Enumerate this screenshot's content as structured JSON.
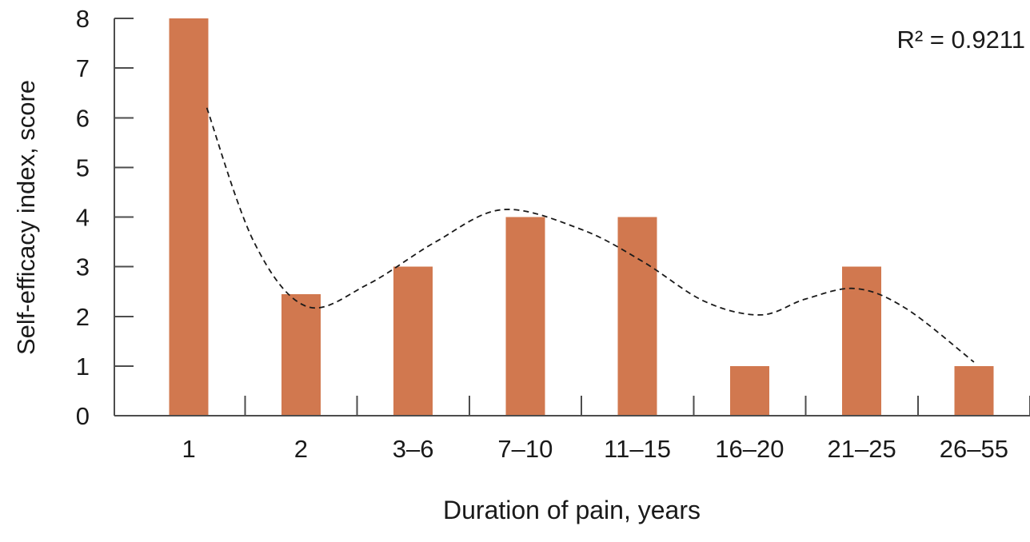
{
  "chart_data": {
    "type": "bar",
    "title": "",
    "xlabel": "Duration of pain, years",
    "ylabel": "Self-efficacy index, score",
    "categories": [
      "1",
      "2",
      "3–6",
      "7–10",
      "11–15",
      "16–20",
      "21–25",
      "26–55"
    ],
    "values": [
      8,
      2.45,
      3,
      4,
      4,
      1,
      3,
      1
    ],
    "ylim": [
      0,
      8
    ],
    "y_ticks": [
      0,
      1,
      2,
      3,
      4,
      5,
      6,
      7,
      8
    ],
    "grid": false,
    "legend_position": "none",
    "annotation": "R² = 0.9211",
    "colors": {
      "bar_fill": "#d1784f",
      "axis_stroke": "#4d4d4d",
      "text": "#1a1a1a",
      "trendline_stroke": "#1a1a1a"
    },
    "trendline": {
      "style": "dashed",
      "r_squared": 0.9211,
      "points": [
        {
          "x": 0.66,
          "y": 6.2
        },
        {
          "x": 1.08,
          "y": 3.5
        },
        {
          "x": 1.55,
          "y": 2.2
        },
        {
          "x": 2.1,
          "y": 2.65
        },
        {
          "x": 2.7,
          "y": 3.5
        },
        {
          "x": 3.3,
          "y": 4.15
        },
        {
          "x": 4.0,
          "y": 3.75
        },
        {
          "x": 4.55,
          "y": 3.1
        },
        {
          "x": 5.1,
          "y": 2.3
        },
        {
          "x": 5.6,
          "y": 2.03
        },
        {
          "x": 6.0,
          "y": 2.35
        },
        {
          "x": 6.45,
          "y": 2.56
        },
        {
          "x": 6.9,
          "y": 2.15
        },
        {
          "x": 7.5,
          "y": 1.08
        }
      ]
    }
  }
}
